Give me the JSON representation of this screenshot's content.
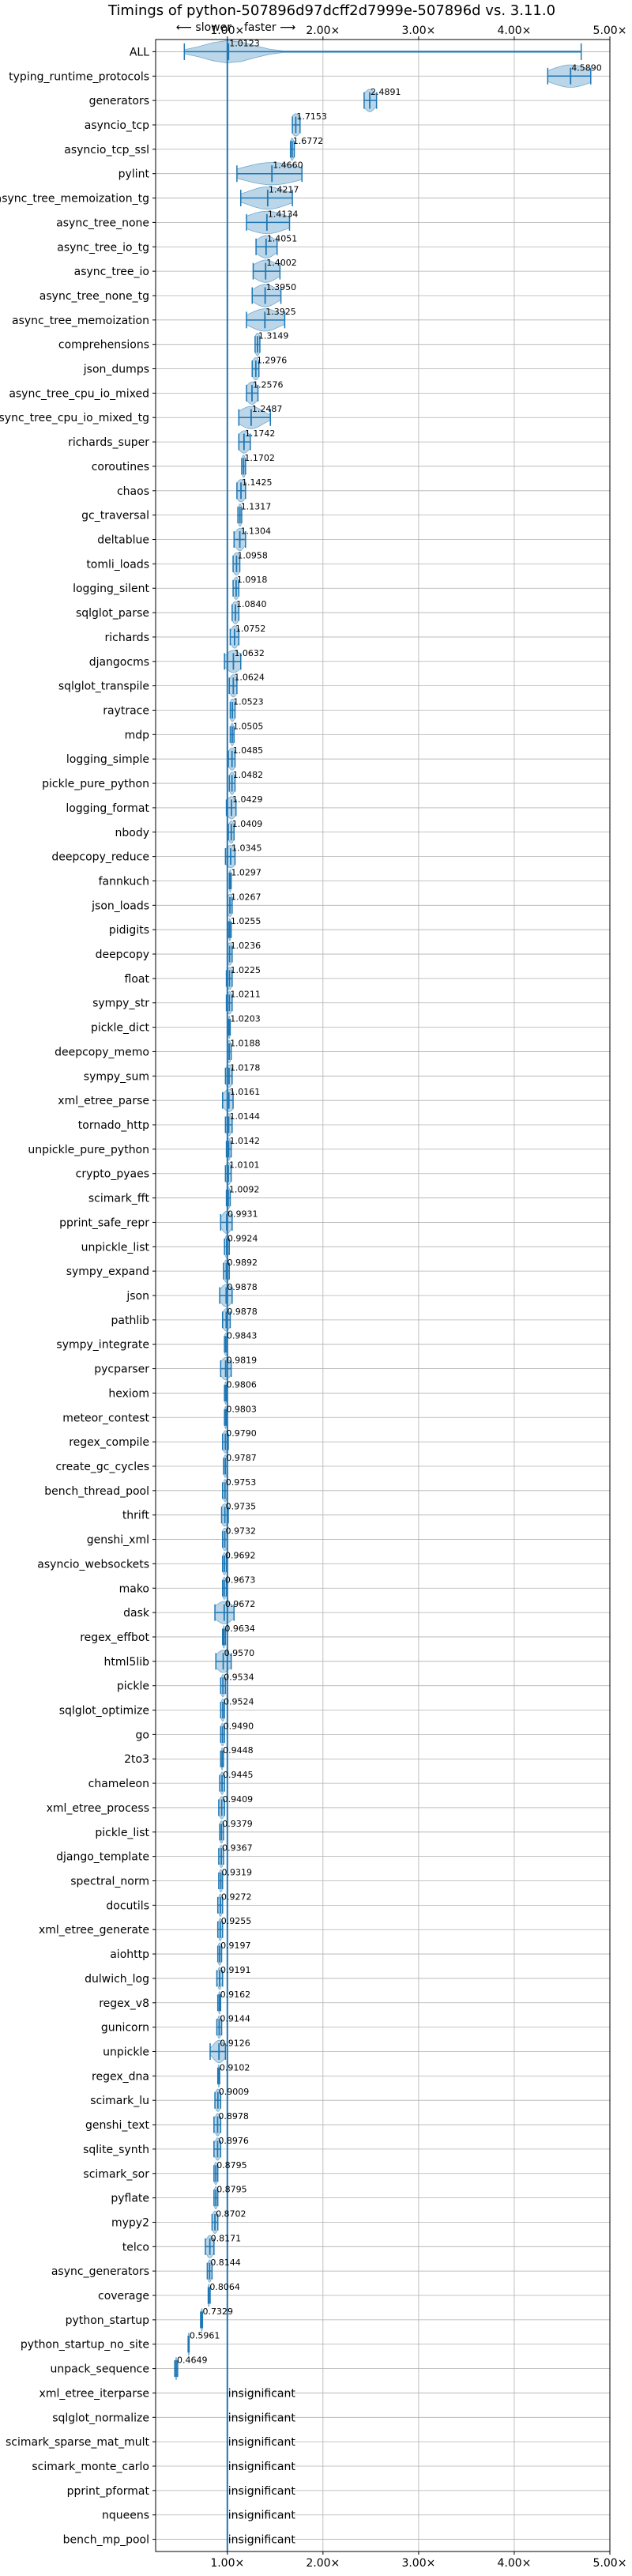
{
  "chart_data": {
    "type": "violin",
    "title": "Timings of python-507896d97dcff2d7999e-507896d vs. 3.11.0",
    "direction": {
      "slower": "⟵ slower",
      "faster": "faster ⟶"
    },
    "xlim": [
      0.25,
      5.0
    ],
    "xticks": [
      1,
      2,
      3,
      4,
      5
    ],
    "xtick_labels": [
      "1.00×",
      "2.00×",
      "3.00×",
      "4.00×",
      "5.00×"
    ],
    "reference_line": 1.0,
    "grid": true,
    "insignificant_label": "insignificant",
    "benchmarks": [
      {
        "name": "ALL",
        "value": 1.0123,
        "label": "1.0123",
        "lo": 0.55,
        "hi": 4.7,
        "spread": 0.25
      },
      {
        "name": "typing_runtime_protocols",
        "value": 4.589,
        "label": "4.5890",
        "lo": 4.35,
        "hi": 4.8,
        "spread": 0.2
      },
      {
        "name": "generators",
        "value": 2.4891,
        "label": "2.4891",
        "lo": 2.43,
        "hi": 2.56,
        "spread": 0.06
      },
      {
        "name": "asyncio_tcp",
        "value": 1.7153,
        "label": "1.7153",
        "lo": 1.68,
        "hi": 1.76,
        "spread": 0.05
      },
      {
        "name": "asyncio_tcp_ssl",
        "value": 1.6772,
        "label": "1.6772",
        "lo": 1.66,
        "hi": 1.7,
        "spread": 0.02
      },
      {
        "name": "pylint",
        "value": 1.466,
        "label": "1.4660",
        "lo": 1.1,
        "hi": 1.78,
        "spread": 0.28
      },
      {
        "name": "async_tree_memoization_tg",
        "value": 1.4217,
        "label": "1.4217",
        "lo": 1.14,
        "hi": 1.68,
        "spread": 0.2
      },
      {
        "name": "async_tree_none",
        "value": 1.4134,
        "label": "1.4134",
        "lo": 1.2,
        "hi": 1.65,
        "spread": 0.2
      },
      {
        "name": "async_tree_io_tg",
        "value": 1.4051,
        "label": "1.4051",
        "lo": 1.3,
        "hi": 1.52,
        "spread": 0.1
      },
      {
        "name": "async_tree_io",
        "value": 1.4002,
        "label": "1.4002",
        "lo": 1.27,
        "hi": 1.55,
        "spread": 0.12
      },
      {
        "name": "async_tree_none_tg",
        "value": 1.395,
        "label": "1.3950",
        "lo": 1.26,
        "hi": 1.56,
        "spread": 0.12
      },
      {
        "name": "async_tree_memoization",
        "value": 1.3925,
        "label": "1.3925",
        "lo": 1.2,
        "hi": 1.6,
        "spread": 0.15
      },
      {
        "name": "comprehensions",
        "value": 1.3149,
        "label": "1.3149",
        "lo": 1.29,
        "hi": 1.34,
        "spread": 0.03
      },
      {
        "name": "json_dumps",
        "value": 1.2976,
        "label": "1.2976",
        "lo": 1.26,
        "hi": 1.33,
        "spread": 0.04
      },
      {
        "name": "async_tree_cpu_io_mixed",
        "value": 1.2576,
        "label": "1.2576",
        "lo": 1.2,
        "hi": 1.32,
        "spread": 0.06
      },
      {
        "name": "async_tree_cpu_io_mixed_tg",
        "value": 1.2487,
        "label": "1.2487",
        "lo": 1.12,
        "hi": 1.45,
        "spread": 0.12
      },
      {
        "name": "richards_super",
        "value": 1.1742,
        "label": "1.1742",
        "lo": 1.12,
        "hi": 1.24,
        "spread": 0.06
      },
      {
        "name": "coroutines",
        "value": 1.1702,
        "label": "1.1702",
        "lo": 1.15,
        "hi": 1.19,
        "spread": 0.02
      },
      {
        "name": "chaos",
        "value": 1.1425,
        "label": "1.1425",
        "lo": 1.1,
        "hi": 1.19,
        "spread": 0.05
      },
      {
        "name": "gc_traversal",
        "value": 1.1317,
        "label": "1.1317",
        "lo": 1.11,
        "hi": 1.15,
        "spread": 0.02
      },
      {
        "name": "deltablue",
        "value": 1.1304,
        "label": "1.1304",
        "lo": 1.07,
        "hi": 1.19,
        "spread": 0.05
      },
      {
        "name": "tomli_loads",
        "value": 1.0958,
        "label": "1.0958",
        "lo": 1.06,
        "hi": 1.13,
        "spread": 0.04
      },
      {
        "name": "logging_silent",
        "value": 1.0918,
        "label": "1.0918",
        "lo": 1.06,
        "hi": 1.12,
        "spread": 0.03
      },
      {
        "name": "sqlglot_parse",
        "value": 1.084,
        "label": "1.0840",
        "lo": 1.05,
        "hi": 1.12,
        "spread": 0.04
      },
      {
        "name": "richards",
        "value": 1.0752,
        "label": "1.0752",
        "lo": 1.03,
        "hi": 1.12,
        "spread": 0.04
      },
      {
        "name": "djangocms",
        "value": 1.0632,
        "label": "1.0632",
        "lo": 0.97,
        "hi": 1.14,
        "spread": 0.08
      },
      {
        "name": "sqlglot_transpile",
        "value": 1.0624,
        "label": "1.0624",
        "lo": 1.02,
        "hi": 1.1,
        "spread": 0.04
      },
      {
        "name": "raytrace",
        "value": 1.0523,
        "label": "1.0523",
        "lo": 1.03,
        "hi": 1.08,
        "spread": 0.03
      },
      {
        "name": "mdp",
        "value": 1.0505,
        "label": "1.0505",
        "lo": 1.03,
        "hi": 1.07,
        "spread": 0.02
      },
      {
        "name": "logging_simple",
        "value": 1.0485,
        "label": "1.0485",
        "lo": 1.01,
        "hi": 1.08,
        "spread": 0.04
      },
      {
        "name": "pickle_pure_python",
        "value": 1.0482,
        "label": "1.0482",
        "lo": 1.02,
        "hi": 1.08,
        "spread": 0.03
      },
      {
        "name": "logging_format",
        "value": 1.0429,
        "label": "1.0429",
        "lo": 0.99,
        "hi": 1.09,
        "spread": 0.05
      },
      {
        "name": "nbody",
        "value": 1.0409,
        "label": "1.0409",
        "lo": 1.01,
        "hi": 1.07,
        "spread": 0.03
      },
      {
        "name": "deepcopy_reduce",
        "value": 1.0345,
        "label": "1.0345",
        "lo": 0.98,
        "hi": 1.08,
        "spread": 0.06
      },
      {
        "name": "fannkuch",
        "value": 1.0297,
        "label": "1.0297",
        "lo": 1.02,
        "hi": 1.04,
        "spread": 0.01
      },
      {
        "name": "json_loads",
        "value": 1.0267,
        "label": "1.0267",
        "lo": 1.0,
        "hi": 1.05,
        "spread": 0.03
      },
      {
        "name": "pidigits",
        "value": 1.0255,
        "label": "1.0255",
        "lo": 1.01,
        "hi": 1.04,
        "spread": 0.01
      },
      {
        "name": "deepcopy",
        "value": 1.0236,
        "label": "1.0236",
        "lo": 1.0,
        "hi": 1.05,
        "spread": 0.03
      },
      {
        "name": "float",
        "value": 1.0225,
        "label": "1.0225",
        "lo": 0.99,
        "hi": 1.05,
        "spread": 0.03
      },
      {
        "name": "sympy_str",
        "value": 1.0211,
        "label": "1.0211",
        "lo": 0.99,
        "hi": 1.05,
        "spread": 0.03
      },
      {
        "name": "pickle_dict",
        "value": 1.0203,
        "label": "1.0203",
        "lo": 1.01,
        "hi": 1.03,
        "spread": 0.01
      },
      {
        "name": "deepcopy_memo",
        "value": 1.0188,
        "label": "1.0188",
        "lo": 1.0,
        "hi": 1.04,
        "spread": 0.02
      },
      {
        "name": "sympy_sum",
        "value": 1.0178,
        "label": "1.0178",
        "lo": 0.98,
        "hi": 1.05,
        "spread": 0.04
      },
      {
        "name": "xml_etree_parse",
        "value": 1.0161,
        "label": "1.0161",
        "lo": 0.95,
        "hi": 1.06,
        "spread": 0.06
      },
      {
        "name": "tornado_http",
        "value": 1.0144,
        "label": "1.0144",
        "lo": 0.98,
        "hi": 1.05,
        "spread": 0.03
      },
      {
        "name": "unpickle_pure_python",
        "value": 1.0142,
        "label": "1.0142",
        "lo": 0.99,
        "hi": 1.04,
        "spread": 0.02
      },
      {
        "name": "crypto_pyaes",
        "value": 1.0101,
        "label": "1.0101",
        "lo": 0.98,
        "hi": 1.04,
        "spread": 0.03
      },
      {
        "name": "scimark_fft",
        "value": 1.0092,
        "label": "1.0092",
        "lo": 0.99,
        "hi": 1.03,
        "spread": 0.02
      },
      {
        "name": "pprint_safe_repr",
        "value": 0.9931,
        "label": "0.9931",
        "lo": 0.93,
        "hi": 1.05,
        "spread": 0.05
      },
      {
        "name": "unpickle_list",
        "value": 0.9924,
        "label": "0.9924",
        "lo": 0.97,
        "hi": 1.02,
        "spread": 0.02
      },
      {
        "name": "sympy_expand",
        "value": 0.9892,
        "label": "0.9892",
        "lo": 0.96,
        "hi": 1.02,
        "spread": 0.03
      },
      {
        "name": "json",
        "value": 0.9878,
        "label": "0.9878",
        "lo": 0.92,
        "hi": 1.05,
        "spread": 0.06
      },
      {
        "name": "pathlib",
        "value": 0.9878,
        "label": "0.9878",
        "lo": 0.95,
        "hi": 1.03,
        "spread": 0.04
      },
      {
        "name": "sympy_integrate",
        "value": 0.9843,
        "label": "0.9843",
        "lo": 0.97,
        "hi": 1.0,
        "spread": 0.02
      },
      {
        "name": "pycparser",
        "value": 0.9819,
        "label": "0.9819",
        "lo": 0.93,
        "hi": 1.04,
        "spread": 0.05
      },
      {
        "name": "hexiom",
        "value": 0.9806,
        "label": "0.9806",
        "lo": 0.97,
        "hi": 0.99,
        "spread": 0.01
      },
      {
        "name": "meteor_contest",
        "value": 0.9803,
        "label": "0.9803",
        "lo": 0.97,
        "hi": 0.99,
        "spread": 0.01
      },
      {
        "name": "regex_compile",
        "value": 0.979,
        "label": "0.9790",
        "lo": 0.95,
        "hi": 1.01,
        "spread": 0.03
      },
      {
        "name": "create_gc_cycles",
        "value": 0.9787,
        "label": "0.9787",
        "lo": 0.96,
        "hi": 1.0,
        "spread": 0.02
      },
      {
        "name": "bench_thread_pool",
        "value": 0.9753,
        "label": "0.9753",
        "lo": 0.95,
        "hi": 1.0,
        "spread": 0.02
      },
      {
        "name": "thrift",
        "value": 0.9735,
        "label": "0.9735",
        "lo": 0.94,
        "hi": 1.01,
        "spread": 0.04
      },
      {
        "name": "genshi_xml",
        "value": 0.9732,
        "label": "0.9732",
        "lo": 0.95,
        "hi": 1.0,
        "spread": 0.03
      },
      {
        "name": "asyncio_websockets",
        "value": 0.9692,
        "label": "0.9692",
        "lo": 0.95,
        "hi": 0.99,
        "spread": 0.02
      },
      {
        "name": "mako",
        "value": 0.9673,
        "label": "0.9673",
        "lo": 0.95,
        "hi": 0.99,
        "spread": 0.02
      },
      {
        "name": "dask",
        "value": 0.9672,
        "label": "0.9672",
        "lo": 0.87,
        "hi": 1.07,
        "spread": 0.09
      },
      {
        "name": "regex_effbot",
        "value": 0.9634,
        "label": "0.9634",
        "lo": 0.95,
        "hi": 0.98,
        "spread": 0.01
      },
      {
        "name": "html5lib",
        "value": 0.957,
        "label": "0.9570",
        "lo": 0.88,
        "hi": 1.04,
        "spread": 0.07
      },
      {
        "name": "pickle",
        "value": 0.9534,
        "label": "0.9534",
        "lo": 0.93,
        "hi": 0.98,
        "spread": 0.02
      },
      {
        "name": "sqlglot_optimize",
        "value": 0.9524,
        "label": "0.9524",
        "lo": 0.93,
        "hi": 0.97,
        "spread": 0.02
      },
      {
        "name": "go",
        "value": 0.949,
        "label": "0.9490",
        "lo": 0.93,
        "hi": 0.97,
        "spread": 0.02
      },
      {
        "name": "2to3",
        "value": 0.9448,
        "label": "0.9448",
        "lo": 0.93,
        "hi": 0.96,
        "spread": 0.01
      },
      {
        "name": "chameleon",
        "value": 0.9445,
        "label": "0.9445",
        "lo": 0.92,
        "hi": 0.97,
        "spread": 0.02
      },
      {
        "name": "xml_etree_process",
        "value": 0.9409,
        "label": "0.9409",
        "lo": 0.91,
        "hi": 0.97,
        "spread": 0.03
      },
      {
        "name": "pickle_list",
        "value": 0.9379,
        "label": "0.9379",
        "lo": 0.92,
        "hi": 0.96,
        "spread": 0.02
      },
      {
        "name": "django_template",
        "value": 0.9367,
        "label": "0.9367",
        "lo": 0.91,
        "hi": 0.96,
        "spread": 0.02
      },
      {
        "name": "spectral_norm",
        "value": 0.9319,
        "label": "0.9319",
        "lo": 0.91,
        "hi": 0.95,
        "spread": 0.02
      },
      {
        "name": "docutils",
        "value": 0.9272,
        "label": "0.9272",
        "lo": 0.9,
        "hi": 0.95,
        "spread": 0.02
      },
      {
        "name": "xml_etree_generate",
        "value": 0.9255,
        "label": "0.9255",
        "lo": 0.9,
        "hi": 0.95,
        "spread": 0.02
      },
      {
        "name": "aiohttp",
        "value": 0.9197,
        "label": "0.9197",
        "lo": 0.9,
        "hi": 0.94,
        "spread": 0.02
      },
      {
        "name": "dulwich_log",
        "value": 0.9191,
        "label": "0.9191",
        "lo": 0.89,
        "hi": 0.95,
        "spread": 0.02
      },
      {
        "name": "regex_v8",
        "value": 0.9162,
        "label": "0.9162",
        "lo": 0.9,
        "hi": 0.93,
        "spread": 0.01
      },
      {
        "name": "gunicorn",
        "value": 0.9144,
        "label": "0.9144",
        "lo": 0.89,
        "hi": 0.94,
        "spread": 0.02
      },
      {
        "name": "unpickle",
        "value": 0.9126,
        "label": "0.9126",
        "lo": 0.82,
        "hi": 0.98,
        "spread": 0.06
      },
      {
        "name": "regex_dna",
        "value": 0.9102,
        "label": "0.9102",
        "lo": 0.9,
        "hi": 0.92,
        "spread": 0.01
      },
      {
        "name": "scimark_lu",
        "value": 0.9009,
        "label": "0.9009",
        "lo": 0.87,
        "hi": 0.93,
        "spread": 0.03
      },
      {
        "name": "genshi_text",
        "value": 0.8978,
        "label": "0.8978",
        "lo": 0.86,
        "hi": 0.93,
        "spread": 0.03
      },
      {
        "name": "sqlite_synth",
        "value": 0.8976,
        "label": "0.8976",
        "lo": 0.86,
        "hi": 0.93,
        "spread": 0.03
      },
      {
        "name": "scimark_sor",
        "value": 0.8795,
        "label": "0.8795",
        "lo": 0.86,
        "hi": 0.9,
        "spread": 0.02
      },
      {
        "name": "pyflate",
        "value": 0.8795,
        "label": "0.8795",
        "lo": 0.86,
        "hi": 0.9,
        "spread": 0.02
      },
      {
        "name": "mypy2",
        "value": 0.8702,
        "label": "0.8702",
        "lo": 0.84,
        "hi": 0.9,
        "spread": 0.03
      },
      {
        "name": "telco",
        "value": 0.8171,
        "label": "0.8171",
        "lo": 0.77,
        "hi": 0.86,
        "spread": 0.04
      },
      {
        "name": "async_generators",
        "value": 0.8144,
        "label": "0.8144",
        "lo": 0.79,
        "hi": 0.84,
        "spread": 0.02
      },
      {
        "name": "coverage",
        "value": 0.8064,
        "label": "0.8064",
        "lo": 0.8,
        "hi": 0.82,
        "spread": 0.01
      },
      {
        "name": "python_startup",
        "value": 0.7329,
        "label": "0.7329",
        "lo": 0.72,
        "hi": 0.74,
        "spread": 0.01
      },
      {
        "name": "python_startup_no_site",
        "value": 0.5961,
        "label": "0.5961",
        "lo": 0.59,
        "hi": 0.6,
        "spread": 0.01
      },
      {
        "name": "unpack_sequence",
        "value": 0.4649,
        "label": "0.4649",
        "lo": 0.45,
        "hi": 0.48,
        "spread": 0.01
      },
      {
        "name": "xml_etree_iterparse",
        "value": null,
        "label": ""
      },
      {
        "name": "sqlglot_normalize",
        "value": null,
        "label": ""
      },
      {
        "name": "scimark_sparse_mat_mult",
        "value": null,
        "label": ""
      },
      {
        "name": "scimark_monte_carlo",
        "value": null,
        "label": ""
      },
      {
        "name": "pprint_pformat",
        "value": null,
        "label": ""
      },
      {
        "name": "nqueens",
        "value": null,
        "label": ""
      },
      {
        "name": "bench_mp_pool",
        "value": null,
        "label": ""
      }
    ]
  }
}
